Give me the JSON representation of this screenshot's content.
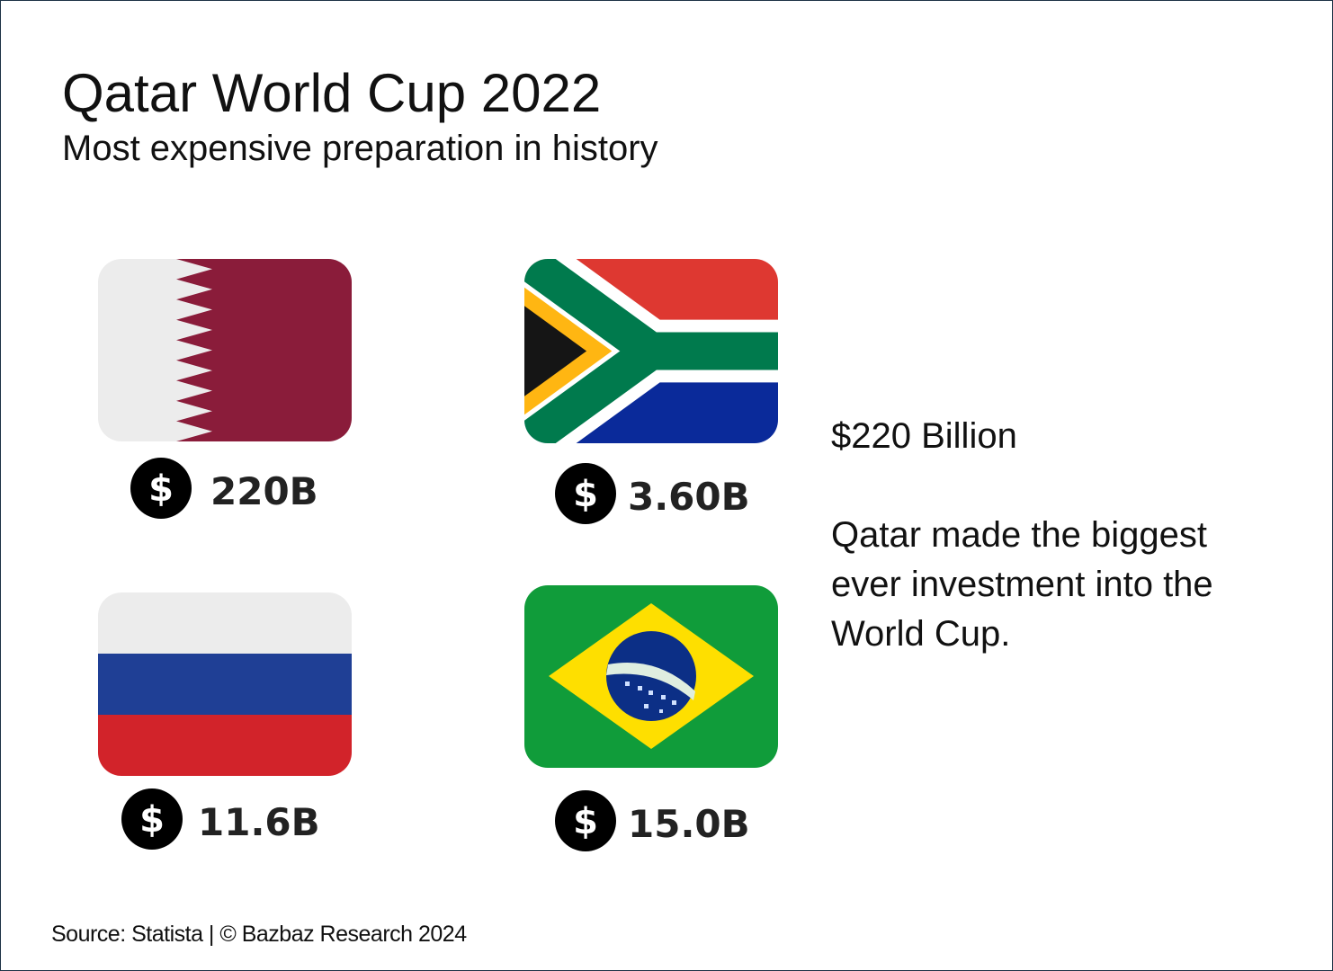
{
  "header": {
    "title": "Qatar World Cup 2022",
    "subtitle": "Most expensive preparation in history"
  },
  "cards": [
    {
      "country": "Qatar",
      "icon": "$",
      "amount": "220B"
    },
    {
      "country": "South Africa",
      "icon": "$",
      "amount": "3.60B"
    },
    {
      "country": "Russia",
      "icon": "$",
      "amount": "11.6B"
    },
    {
      "country": "Brazil",
      "icon": "$",
      "amount": "15.0B"
    }
  ],
  "highlight": "$220 Billion",
  "description": [
    "Qatar made the biggest",
    "ever investment into the",
    "World Cup."
  ],
  "footer": {
    "source": "Source: Statista | © Bazbaz Research 2024"
  }
}
